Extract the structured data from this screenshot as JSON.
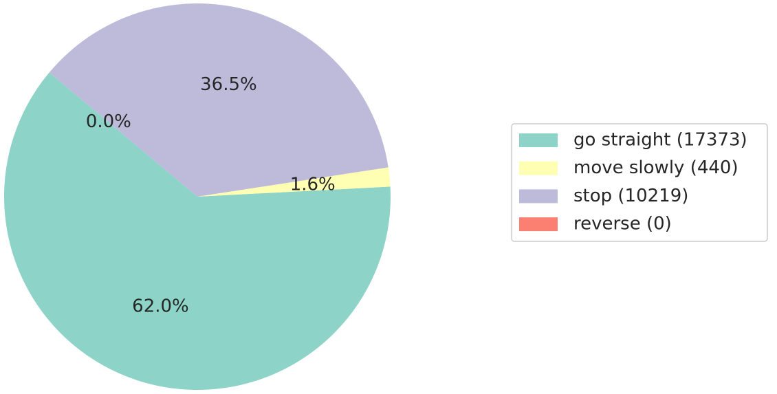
{
  "chart_data": {
    "type": "pie",
    "categories": [
      "go straight (17373)",
      "move slowly (440)",
      "stop (10219)",
      "reverse (0)"
    ],
    "values": [
      62.0,
      1.6,
      36.5,
      0.0
    ],
    "value_labels": [
      "62.0%",
      "1.6%",
      "36.5%",
      "0.0%"
    ],
    "colors": [
      "#8dd3c7",
      "#ffffb3",
      "#bebada",
      "#fb8072"
    ],
    "start_angle": 140,
    "legend": "right"
  }
}
